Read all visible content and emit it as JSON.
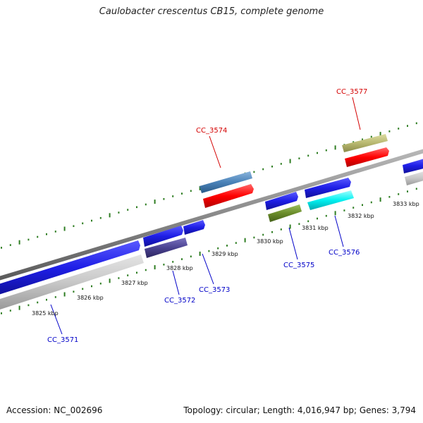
{
  "title": "Caulobacter crescentus CB15, complete genome",
  "footer": {
    "accession": "Accession: NC_002696",
    "summary": "Topology: circular; Length: 4,016,947 bp; Genes: 3,794"
  },
  "colors": {
    "forward_blue": "#1e1ee6",
    "reverse_gray": "#c8c8c8",
    "backbone": "#8a8a8a",
    "tick_green": "#2e7d22",
    "label_red": "#d40000",
    "label_blue": "#0000c8"
  },
  "kbp_labels": [
    "3825 kbp",
    "3826 kbp",
    "3827 kbp",
    "3828 kbp",
    "3829 kbp",
    "3830 kbp",
    "3831 kbp",
    "3832 kbp",
    "3833 kbp"
  ],
  "gene_labels": [
    {
      "id": "cc3571",
      "text": "CC_3571",
      "color": "blue"
    },
    {
      "id": "cc3572",
      "text": "CC_3572",
      "color": "blue"
    },
    {
      "id": "cc3573",
      "text": "CC_3573",
      "color": "blue"
    },
    {
      "id": "cc3574",
      "text": "CC_3574",
      "color": "red"
    },
    {
      "id": "cc3575",
      "text": "CC_3575",
      "color": "blue"
    },
    {
      "id": "cc3576",
      "text": "CC_3576",
      "color": "blue"
    },
    {
      "id": "cc3577",
      "text": "CC_3577",
      "color": "red"
    }
  ]
}
